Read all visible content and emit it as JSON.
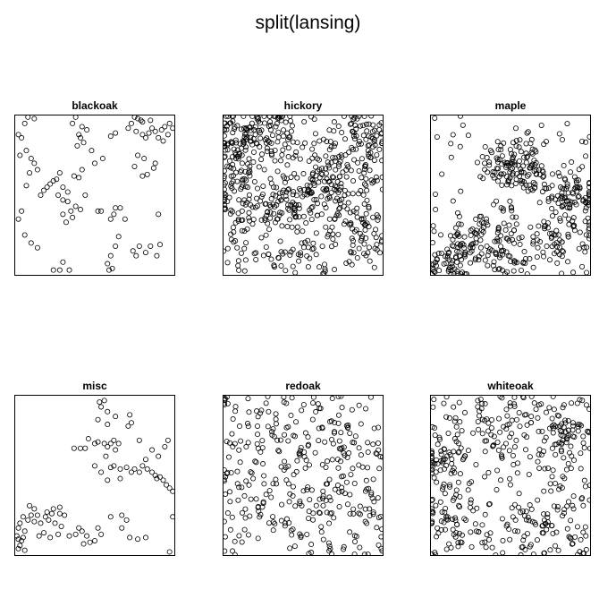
{
  "title": "split(lansing)",
  "chart_data": [
    {
      "type": "scatter",
      "title": "blackoak",
      "xlim": [
        0,
        1
      ],
      "ylim": [
        0,
        1
      ],
      "points": [
        [
          0.02,
          0.88
        ],
        [
          0.04,
          0.86
        ],
        [
          0.06,
          0.95
        ],
        [
          0.08,
          0.99
        ],
        [
          0.12,
          0.98
        ],
        [
          0.03,
          0.75
        ],
        [
          0.07,
          0.78
        ],
        [
          0.1,
          0.73
        ],
        [
          0.12,
          0.7
        ],
        [
          0.14,
          0.66
        ],
        [
          0.09,
          0.64
        ],
        [
          0.07,
          0.56
        ],
        [
          0.04,
          0.4
        ],
        [
          0.02,
          0.35
        ],
        [
          0.06,
          0.25
        ],
        [
          0.1,
          0.2
        ],
        [
          0.14,
          0.17
        ],
        [
          0.16,
          0.5
        ],
        [
          0.18,
          0.53
        ],
        [
          0.2,
          0.55
        ],
        [
          0.22,
          0.57
        ],
        [
          0.24,
          0.59
        ],
        [
          0.26,
          0.6
        ],
        [
          0.28,
          0.64
        ],
        [
          0.3,
          0.55
        ],
        [
          0.33,
          0.52
        ],
        [
          0.27,
          0.5
        ],
        [
          0.3,
          0.47
        ],
        [
          0.33,
          0.46
        ],
        [
          0.37,
          0.62
        ],
        [
          0.4,
          0.61
        ],
        [
          0.42,
          0.66
        ],
        [
          0.38,
          0.43
        ],
        [
          0.41,
          0.41
        ],
        [
          0.36,
          0.36
        ],
        [
          0.3,
          0.38
        ],
        [
          0.32,
          0.33
        ],
        [
          0.35,
          0.4
        ],
        [
          0.4,
          0.88
        ],
        [
          0.42,
          0.93
        ],
        [
          0.45,
          0.91
        ],
        [
          0.36,
          0.95
        ],
        [
          0.38,
          0.99
        ],
        [
          0.41,
          0.86
        ],
        [
          0.43,
          0.83
        ],
        [
          0.39,
          0.81
        ],
        [
          0.48,
          0.78
        ],
        [
          0.44,
          0.5
        ],
        [
          0.5,
          0.7
        ],
        [
          0.55,
          0.73
        ],
        [
          0.54,
          0.4
        ],
        [
          0.52,
          0.4
        ],
        [
          0.6,
          0.35
        ],
        [
          0.62,
          0.38
        ],
        [
          0.63,
          0.42
        ],
        [
          0.66,
          0.42
        ],
        [
          0.69,
          0.35
        ],
        [
          0.65,
          0.24
        ],
        [
          0.63,
          0.18
        ],
        [
          0.6,
          0.12
        ],
        [
          0.58,
          0.07
        ],
        [
          0.59,
          0.03
        ],
        [
          0.61,
          0.04
        ],
        [
          0.28,
          0.03
        ],
        [
          0.24,
          0.03
        ],
        [
          0.3,
          0.08
        ],
        [
          0.34,
          0.03
        ],
        [
          0.6,
          0.87
        ],
        [
          0.63,
          0.89
        ],
        [
          0.71,
          0.92
        ],
        [
          0.73,
          0.95
        ],
        [
          0.75,
          0.99
        ],
        [
          0.77,
          0.98
        ],
        [
          0.79,
          0.97
        ],
        [
          0.76,
          0.9
        ],
        [
          0.8,
          0.88
        ],
        [
          0.82,
          0.86
        ],
        [
          0.84,
          0.89
        ],
        [
          0.86,
          0.92
        ],
        [
          0.88,
          0.9
        ],
        [
          0.9,
          0.86
        ],
        [
          0.92,
          0.91
        ],
        [
          0.94,
          0.93
        ],
        [
          0.97,
          0.95
        ],
        [
          0.99,
          0.92
        ],
        [
          0.85,
          0.97
        ],
        [
          0.8,
          0.96
        ],
        [
          0.77,
          0.75
        ],
        [
          0.81,
          0.73
        ],
        [
          0.75,
          0.68
        ],
        [
          0.8,
          0.62
        ],
        [
          0.83,
          0.63
        ],
        [
          0.87,
          0.67
        ],
        [
          0.9,
          0.38
        ],
        [
          0.78,
          0.18
        ],
        [
          0.82,
          0.14
        ],
        [
          0.85,
          0.18
        ],
        [
          0.91,
          0.19
        ],
        [
          0.89,
          0.12
        ],
        [
          0.76,
          0.12
        ],
        [
          0.74,
          0.15
        ],
        [
          0.88,
          0.7
        ],
        [
          0.93,
          0.84
        ],
        [
          0.96,
          0.88
        ]
      ]
    },
    {
      "type": "scatter",
      "title": "hickory",
      "xlim": [
        0,
        1
      ],
      "ylim": [
        0,
        1
      ],
      "count": 703
    },
    {
      "type": "scatter",
      "title": "maple",
      "xlim": [
        0,
        1
      ],
      "ylim": [
        0,
        1
      ],
      "count": 514
    },
    {
      "type": "scatter",
      "title": "misc",
      "xlim": [
        0,
        1
      ],
      "ylim": [
        0,
        1
      ],
      "points": [
        [
          0.53,
          0.96
        ],
        [
          0.56,
          0.97
        ],
        [
          0.54,
          0.93
        ],
        [
          0.58,
          0.9
        ],
        [
          0.52,
          0.85
        ],
        [
          0.58,
          0.82
        ],
        [
          0.63,
          0.87
        ],
        [
          0.72,
          0.88
        ],
        [
          0.73,
          0.83
        ],
        [
          0.71,
          0.81
        ],
        [
          0.6,
          0.7
        ],
        [
          0.58,
          0.68
        ],
        [
          0.56,
          0.7
        ],
        [
          0.62,
          0.72
        ],
        [
          0.65,
          0.7
        ],
        [
          0.63,
          0.66
        ],
        [
          0.52,
          0.71
        ],
        [
          0.5,
          0.7
        ],
        [
          0.46,
          0.73
        ],
        [
          0.37,
          0.67
        ],
        [
          0.41,
          0.67
        ],
        [
          0.44,
          0.67
        ],
        [
          0.57,
          0.62
        ],
        [
          0.62,
          0.56
        ],
        [
          0.6,
          0.55
        ],
        [
          0.66,
          0.54
        ],
        [
          0.7,
          0.55
        ],
        [
          0.73,
          0.52
        ],
        [
          0.75,
          0.54
        ],
        [
          0.78,
          0.52
        ],
        [
          0.8,
          0.56
        ],
        [
          0.83,
          0.54
        ],
        [
          0.86,
          0.52
        ],
        [
          0.88,
          0.5
        ],
        [
          0.89,
          0.48
        ],
        [
          0.91,
          0.49
        ],
        [
          0.93,
          0.47
        ],
        [
          0.95,
          0.44
        ],
        [
          0.97,
          0.42
        ],
        [
          0.99,
          0.4
        ],
        [
          0.66,
          0.48
        ],
        [
          0.58,
          0.47
        ],
        [
          0.54,
          0.52
        ],
        [
          0.5,
          0.56
        ],
        [
          0.94,
          0.68
        ],
        [
          0.96,
          0.72
        ],
        [
          0.9,
          0.62
        ],
        [
          0.82,
          0.6
        ],
        [
          0.86,
          0.66
        ],
        [
          0.78,
          0.72
        ],
        [
          0.99,
          0.24
        ],
        [
          0.97,
          0.02
        ],
        [
          0.6,
          0.24
        ],
        [
          0.67,
          0.25
        ],
        [
          0.7,
          0.22
        ],
        [
          0.67,
          0.17
        ],
        [
          0.72,
          0.11
        ],
        [
          0.82,
          0.11
        ],
        [
          0.77,
          0.1
        ],
        [
          0.54,
          0.13
        ],
        [
          0.52,
          0.17
        ],
        [
          0.5,
          0.09
        ],
        [
          0.47,
          0.08
        ],
        [
          0.45,
          0.12
        ],
        [
          0.43,
          0.07
        ],
        [
          0.42,
          0.15
        ],
        [
          0.4,
          0.17
        ],
        [
          0.38,
          0.13
        ],
        [
          0.34,
          0.12
        ],
        [
          0.31,
          0.25
        ],
        [
          0.28,
          0.26
        ],
        [
          0.29,
          0.18
        ],
        [
          0.27,
          0.13
        ],
        [
          0.25,
          0.2
        ],
        [
          0.21,
          0.22
        ],
        [
          0.23,
          0.26
        ],
        [
          0.19,
          0.24
        ],
        [
          0.16,
          0.2
        ],
        [
          0.12,
          0.21
        ],
        [
          0.1,
          0.25
        ],
        [
          0.08,
          0.22
        ],
        [
          0.05,
          0.24
        ],
        [
          0.03,
          0.2
        ],
        [
          0.02,
          0.17
        ],
        [
          0.01,
          0.12
        ],
        [
          0.02,
          0.1
        ],
        [
          0.04,
          0.09
        ],
        [
          0.03,
          0.06
        ],
        [
          0.05,
          0.11
        ],
        [
          0.06,
          0.15
        ],
        [
          0.15,
          0.12
        ],
        [
          0.18,
          0.14
        ],
        [
          0.22,
          0.11
        ],
        [
          0.28,
          0.3
        ],
        [
          0.24,
          0.29
        ],
        [
          0.2,
          0.27
        ],
        [
          0.14,
          0.25
        ],
        [
          0.12,
          0.29
        ],
        [
          0.09,
          0.31
        ],
        [
          0.06,
          0.03
        ],
        [
          0.02,
          0.04
        ]
      ]
    },
    {
      "type": "scatter",
      "title": "redoak",
      "xlim": [
        0,
        1
      ],
      "ylim": [
        0,
        1
      ],
      "count": 346
    },
    {
      "type": "scatter",
      "title": "whiteoak",
      "xlim": [
        0,
        1
      ],
      "ylim": [
        0,
        1
      ],
      "count": 448
    }
  ]
}
